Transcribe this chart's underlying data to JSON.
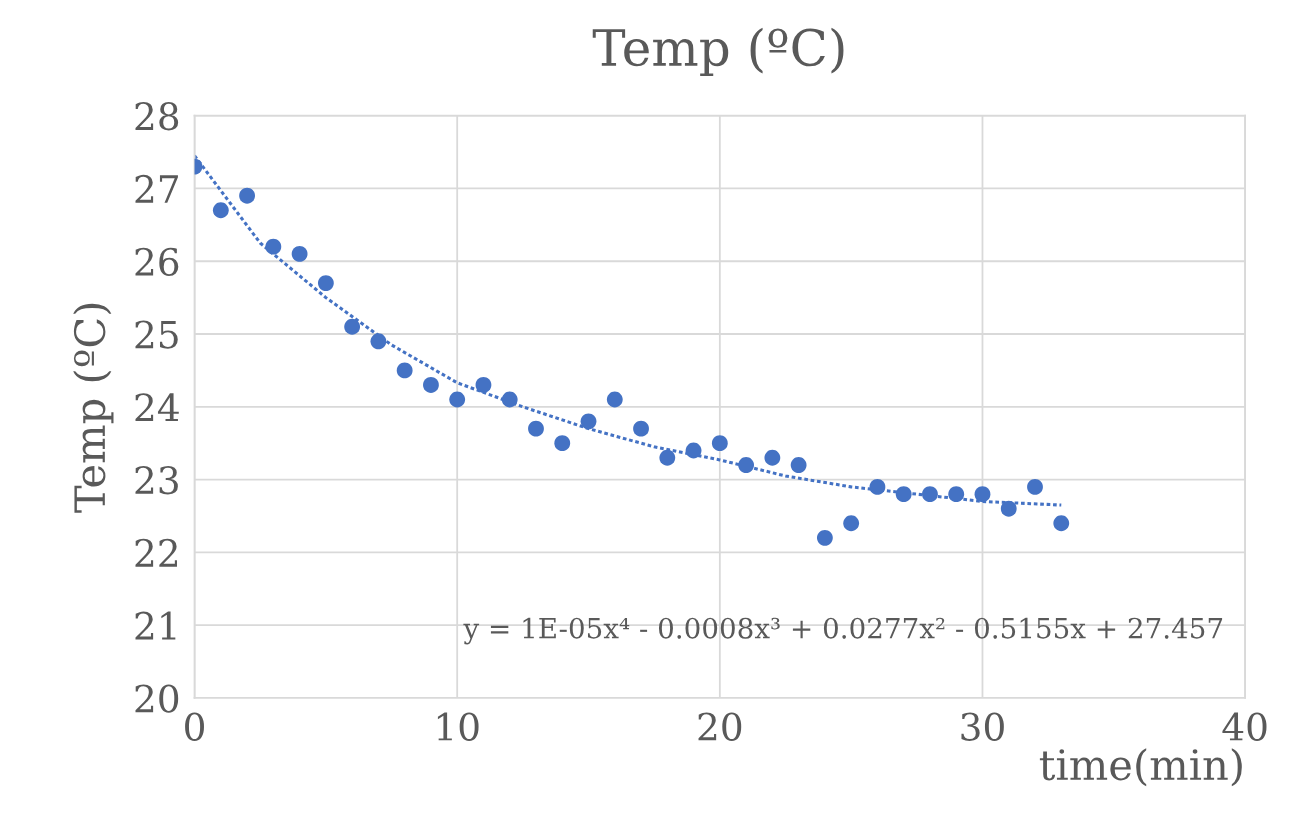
{
  "chart_data": {
    "type": "scatter",
    "title": "Temp (ºC)",
    "xlabel": "time(min)",
    "ylabel": "Temp (ºC)",
    "series": [
      {
        "color": "#4472c4",
        "marker": "circle",
        "x": [
          0,
          1,
          2,
          3,
          4,
          5,
          6,
          7,
          8,
          9,
          10,
          11,
          12,
          13,
          14,
          15,
          16,
          17,
          18,
          19,
          20,
          21,
          22,
          23,
          24,
          25,
          26,
          27,
          28,
          29,
          30,
          31,
          32,
          33
        ],
        "values": [
          27.3,
          26.7,
          26.9,
          26.2,
          26.1,
          25.7,
          25.1,
          24.9,
          24.5,
          24.3,
          24.1,
          24.3,
          24.1,
          23.7,
          23.5,
          23.8,
          24.1,
          23.7,
          23.3,
          23.4,
          23.5,
          23.2,
          23.3,
          23.2,
          22.2,
          22.4,
          22.9,
          22.8,
          22.8,
          22.8,
          22.8,
          22.6,
          22.9,
          22.4
        ]
      },
      {
        "type": "line",
        "color": "#4472c4",
        "line_style": "dotted",
        "marker": "none",
        "x": [
          0,
          2.5,
          5,
          7.5,
          10,
          12.5,
          15,
          17.5,
          20,
          22.5,
          25,
          27.5,
          30,
          33
        ],
        "values": [
          27.45,
          26.25,
          25.5,
          24.85,
          24.33,
          24.0,
          23.7,
          23.45,
          23.27,
          23.05,
          22.9,
          22.8,
          22.7,
          22.65
        ]
      }
    ],
    "annotations": [
      "y = 1E-05x⁴ - 0.0008x³ + 0.0277x² - 0.5155x + 27.457"
    ],
    "xlim": [
      0,
      40
    ],
    "xticks": [
      0,
      10,
      20,
      30,
      40
    ],
    "ylim": [
      20,
      28
    ],
    "yticks": [
      20,
      21,
      22,
      23,
      24,
      25,
      26,
      27,
      28
    ],
    "grid": true,
    "legend": false
  }
}
